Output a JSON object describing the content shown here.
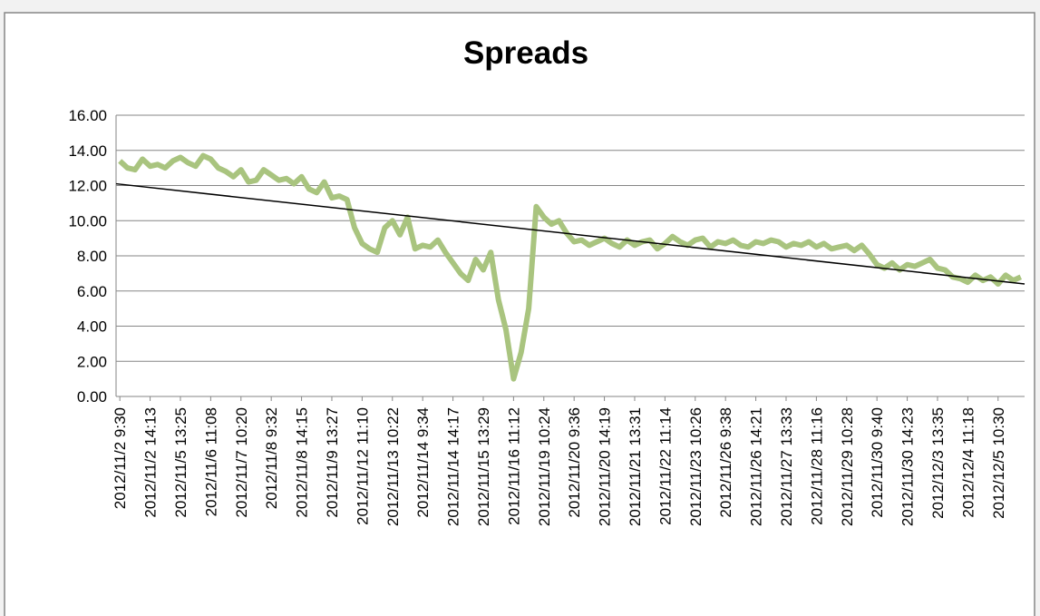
{
  "chart_data": {
    "type": "line",
    "title": "Spreads",
    "categories": [
      "2012/11/2 9:30",
      null,
      null,
      null,
      "2012/11/2 14:13",
      null,
      null,
      null,
      "2012/11/5 13:25",
      null,
      null,
      null,
      "2012/11/6 11:08",
      null,
      null,
      null,
      "2012/11/7 10:20",
      null,
      null,
      null,
      "2012/11/8 9:32",
      null,
      null,
      null,
      "2012/11/8 14:15",
      null,
      null,
      null,
      "2012/11/9 13:27",
      null,
      null,
      null,
      "2012/11/12 11:10",
      null,
      null,
      null,
      "2012/11/13 10:22",
      null,
      null,
      null,
      "2012/11/14 9:34",
      null,
      null,
      null,
      "2012/11/14 14:17",
      null,
      null,
      null,
      "2012/11/15 13:29",
      null,
      null,
      null,
      "2012/11/16 11:12",
      null,
      null,
      null,
      "2012/11/19 10:24",
      null,
      null,
      null,
      "2012/11/20 9:36",
      null,
      null,
      null,
      "2012/11/20 14:19",
      null,
      null,
      null,
      "2012/11/21 13:31",
      null,
      null,
      null,
      "2012/11/22 11:14",
      null,
      null,
      null,
      "2012/11/23 10:26",
      null,
      null,
      null,
      "2012/11/26 9:38",
      null,
      null,
      null,
      "2012/11/26 14:21",
      null,
      null,
      null,
      "2012/11/27 13:33",
      null,
      null,
      null,
      "2012/11/28 11:16",
      null,
      null,
      null,
      "2012/11/29 10:28",
      null,
      null,
      null,
      "2012/11/30 9:40",
      null,
      null,
      null,
      "2012/11/30 14:23",
      null,
      null,
      null,
      "2012/12/3 13:35",
      null,
      null,
      null,
      "2012/12/4 11:18",
      null,
      null,
      null,
      "2012/12/5 10:30",
      null,
      null,
      null
    ],
    "series": [
      {
        "color": "#a9c47f",
        "values": [
          13.4,
          13.0,
          12.9,
          13.5,
          13.1,
          13.2,
          13.0,
          13.4,
          13.6,
          13.3,
          13.1,
          13.7,
          13.5,
          13.0,
          12.8,
          12.5,
          12.9,
          12.2,
          12.3,
          12.9,
          12.6,
          12.3,
          12.4,
          12.1,
          12.5,
          11.8,
          11.6,
          12.2,
          11.3,
          11.4,
          11.2,
          9.6,
          8.7,
          8.4,
          8.2,
          9.6,
          10.0,
          9.2,
          10.2,
          8.4,
          8.6,
          8.5,
          8.9,
          8.2,
          7.6,
          7.0,
          6.6,
          7.8,
          7.2,
          8.2,
          5.5,
          3.8,
          1.0,
          2.5,
          5.0,
          10.8,
          10.2,
          9.8,
          10.0,
          9.3,
          8.8,
          8.9,
          8.6,
          8.8,
          9.0,
          8.7,
          8.5,
          8.9,
          8.6,
          8.8,
          8.9,
          8.4,
          8.7,
          9.1,
          8.8,
          8.6,
          8.9,
          9.0,
          8.5,
          8.8,
          8.7,
          8.9,
          8.6,
          8.5,
          8.8,
          8.7,
          8.9,
          8.8,
          8.5,
          8.7,
          8.6,
          8.8,
          8.5,
          8.7,
          8.4,
          8.5,
          8.6,
          8.3,
          8.6,
          8.1,
          7.5,
          7.3,
          7.6,
          7.2,
          7.5,
          7.4,
          7.6,
          7.8,
          7.3,
          7.2,
          6.8,
          6.7,
          6.5,
          6.9,
          6.6,
          6.8,
          6.4,
          6.9,
          6.6,
          6.8
        ]
      }
    ],
    "trendline": {
      "color": "#000000",
      "values": [
        12.1,
        6.4
      ]
    },
    "ylim": [
      0,
      16
    ],
    "yticks": [
      {
        "value": 0,
        "label": "0.00"
      },
      {
        "value": 2,
        "label": "2.00"
      },
      {
        "value": 4,
        "label": "4.00"
      },
      {
        "value": 6,
        "label": "6.00"
      },
      {
        "value": 8,
        "label": "8.00"
      },
      {
        "value": 10,
        "label": "10.00"
      },
      {
        "value": 12,
        "label": "12.00"
      },
      {
        "value": 14,
        "label": "14.00"
      },
      {
        "value": 16,
        "label": "16.00"
      }
    ],
    "grid": true
  }
}
